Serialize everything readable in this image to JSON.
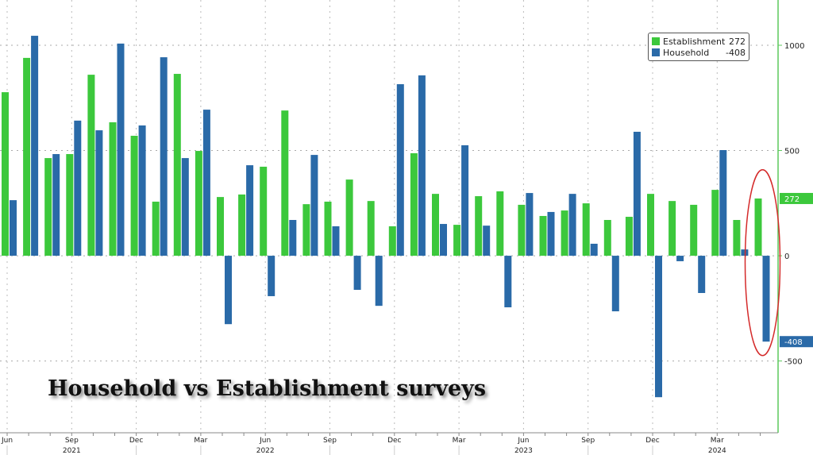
{
  "chart_data": {
    "type": "bar",
    "title": "Household vs Establishment surveys",
    "categories": [
      "Jun 2021",
      "Jul 2021",
      "Aug 2021",
      "Sep 2021",
      "Oct 2021",
      "Nov 2021",
      "Dec 2021",
      "Jan 2022",
      "Feb 2022",
      "Mar 2022",
      "Apr 2022",
      "May 2022",
      "Jun 2022",
      "Jul 2022",
      "Aug 2022",
      "Sep 2022",
      "Oct 2022",
      "Nov 2022",
      "Dec 2022",
      "Jan 2023",
      "Feb 2023",
      "Mar 2023",
      "Apr 2023",
      "May 2023",
      "Jun 2023",
      "Jul 2023",
      "Aug 2023",
      "Sep 2023",
      "Oct 2023",
      "Nov 2023",
      "Dec 2023",
      "Jan 2024",
      "Feb 2024",
      "Mar 2024",
      "Apr 2024",
      "May 2024"
    ],
    "series": [
      {
        "name": "Establishment",
        "color": "#3cc83c",
        "values": [
          777,
          940,
          464,
          483,
          860,
          634,
          570,
          257,
          864,
          498,
          279,
          291,
          423,
          690,
          245,
          257,
          362,
          260,
          140,
          487,
          294,
          147,
          283,
          306,
          242,
          189,
          215,
          249,
          170,
          185,
          294,
          260,
          242,
          313,
          170,
          272
        ]
      },
      {
        "name": "Household",
        "color": "#2a6aa8",
        "values": [
          264,
          1045,
          483,
          642,
          596,
          1008,
          619,
          943,
          464,
          694,
          -325,
          430,
          -192,
          170,
          479,
          140,
          -162,
          -238,
          815,
          857,
          151,
          525,
          143,
          -245,
          298,
          208,
          294,
          57,
          -264,
          589,
          -672,
          -26,
          -177,
          502,
          30,
          -408
        ]
      }
    ],
    "legend": {
      "position": "top-right",
      "entries": [
        {
          "name": "Establishment",
          "value": "272"
        },
        {
          "name": "Household",
          "value": "-408"
        }
      ]
    },
    "last_value_tags": [
      "272",
      "-408"
    ],
    "y_ticks": [
      "1000",
      "500",
      "0",
      "-500"
    ],
    "y_tick_values": [
      1000,
      500,
      0,
      -500
    ],
    "ylim": [
      -841,
      1215
    ],
    "x_ticks": [
      {
        "month": "Jun",
        "year": ""
      },
      {
        "month": "Sep",
        "year": "2021"
      },
      {
        "month": "Dec",
        "year": ""
      },
      {
        "month": "Mar",
        "year": ""
      },
      {
        "month": "Jun",
        "year": "2022"
      },
      {
        "month": "Sep",
        "year": ""
      },
      {
        "month": "Dec",
        "year": ""
      },
      {
        "month": "Mar",
        "year": ""
      },
      {
        "month": "Jun",
        "year": "2023"
      },
      {
        "month": "Sep",
        "year": ""
      },
      {
        "month": "Dec",
        "year": ""
      },
      {
        "month": "Mar",
        "year": "2024"
      }
    ],
    "x_tick_index": [
      0,
      3,
      6,
      9,
      12,
      15,
      18,
      21,
      24,
      27,
      30,
      33
    ],
    "grid": true,
    "annotation": "red ellipse around May 2024 bars",
    "annotation_color": "#d42a2a",
    "axis_color": "#5cc85c"
  }
}
